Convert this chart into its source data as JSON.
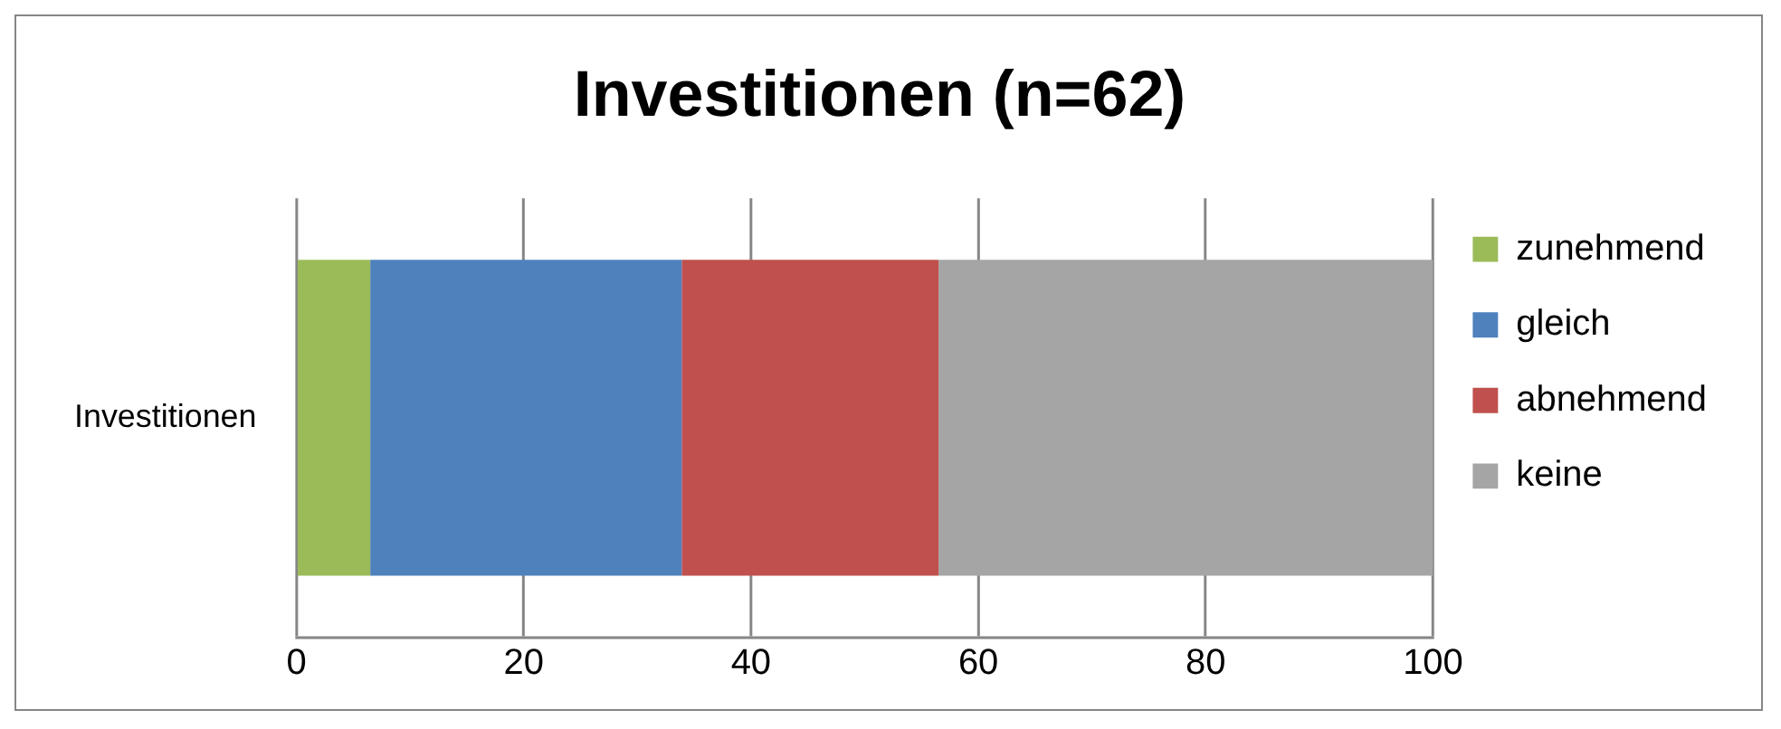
{
  "chart_data": {
    "type": "bar",
    "orientation": "horizontal",
    "stacked": true,
    "title": "Investitionen (n=62)",
    "categories": [
      "Investitionen"
    ],
    "series": [
      {
        "name": "zunehmend",
        "color": "#9bbb59",
        "values": [
          6.5
        ]
      },
      {
        "name": "gleich",
        "color": "#4f81bd",
        "values": [
          27.4
        ]
      },
      {
        "name": "abnehmend",
        "color": "#c0504d",
        "values": [
          22.6
        ]
      },
      {
        "name": "keine",
        "color": "#a5a5a5",
        "values": [
          43.5
        ]
      }
    ],
    "xlim": [
      0,
      100
    ],
    "xticks": [
      0,
      20,
      40,
      60,
      80,
      100
    ],
    "grid": "x",
    "legend": "right"
  }
}
